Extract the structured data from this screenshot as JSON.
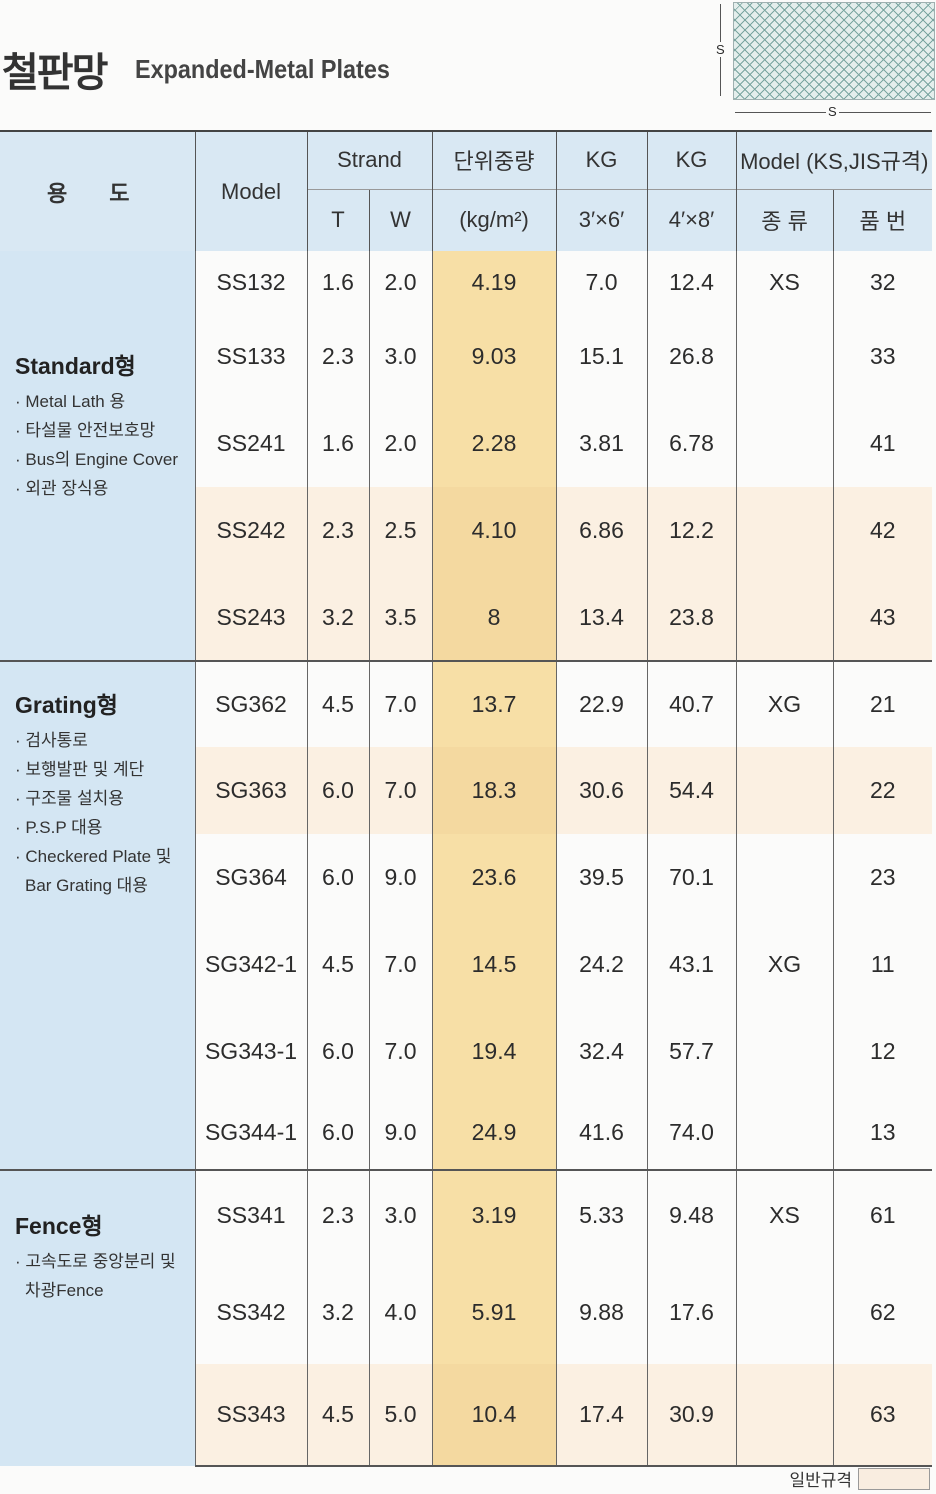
{
  "title_ko": "철판망",
  "title_en": "Expanded-Metal Plates",
  "diagram": {
    "s_vertical": "S",
    "s_horizontal": "S"
  },
  "header": {
    "usage": "용 도",
    "model": "Model",
    "strand": "Strand",
    "t": "T",
    "w": "W",
    "weight": "단위중량",
    "weight_unit": "(kg/m²)",
    "kg1": "KG",
    "size1": "3′×6′",
    "kg2": "KG",
    "size2": "4′×8′",
    "ks_model": "Model (KS,JIS규격)",
    "kind": "종 류",
    "part_no": "품 번"
  },
  "groups": [
    {
      "title": "Standard형",
      "items": [
        "· Metal Lath 용",
        "· 타설물 안전보호망",
        "· Bus의 Engine Cover",
        "· 외관 장식용"
      ]
    },
    {
      "title": "Grating형",
      "items": [
        "· 검사통로",
        "· 보행발판 및 계단",
        "· 구조물 설치용",
        "· P.S.P 대용",
        "· Checkered Plate 및 Bar Grating 대용"
      ]
    },
    {
      "title": "Fence형",
      "items": [
        "· 고속도로 중앙분리 및 차광Fence"
      ]
    }
  ],
  "rows": [
    {
      "model": "SS132",
      "t": "1.6",
      "w": "2.0",
      "weight": "4.19",
      "kg36": "7.0",
      "kg48": "12.4",
      "kind": "XS",
      "no": "32"
    },
    {
      "model": "SS133",
      "t": "2.3",
      "w": "3.0",
      "weight": "9.03",
      "kg36": "15.1",
      "kg48": "26.8",
      "kind": "",
      "no": "33"
    },
    {
      "model": "SS241",
      "t": "1.6",
      "w": "2.0",
      "weight": "2.28",
      "kg36": "3.81",
      "kg48": "6.78",
      "kind": "",
      "no": "41"
    },
    {
      "model": "SS242",
      "t": "2.3",
      "w": "2.5",
      "weight": "4.10",
      "kg36": "6.86",
      "kg48": "12.2",
      "kind": "",
      "no": "42"
    },
    {
      "model": "SS243",
      "t": "3.2",
      "w": "3.5",
      "weight": "8",
      "kg36": "13.4",
      "kg48": "23.8",
      "kind": "",
      "no": "43"
    },
    {
      "model": "SG362",
      "t": "4.5",
      "w": "7.0",
      "weight": "13.7",
      "kg36": "22.9",
      "kg48": "40.7",
      "kind": "XG",
      "no": "21"
    },
    {
      "model": "SG363",
      "t": "6.0",
      "w": "7.0",
      "weight": "18.3",
      "kg36": "30.6",
      "kg48": "54.4",
      "kind": "",
      "no": "22"
    },
    {
      "model": "SG364",
      "t": "6.0",
      "w": "9.0",
      "weight": "23.6",
      "kg36": "39.5",
      "kg48": "70.1",
      "kind": "",
      "no": "23"
    },
    {
      "model": "SG342-1",
      "t": "4.5",
      "w": "7.0",
      "weight": "14.5",
      "kg36": "24.2",
      "kg48": "43.1",
      "kind": "XG",
      "no": "11"
    },
    {
      "model": "SG343-1",
      "t": "6.0",
      "w": "7.0",
      "weight": "19.4",
      "kg36": "32.4",
      "kg48": "57.7",
      "kind": "",
      "no": "12"
    },
    {
      "model": "SG344-1",
      "t": "6.0",
      "w": "9.0",
      "weight": "24.9",
      "kg36": "41.6",
      "kg48": "74.0",
      "kind": "",
      "no": "13"
    },
    {
      "model": "SS341",
      "t": "2.3",
      "w": "3.0",
      "weight": "3.19",
      "kg36": "5.33",
      "kg48": "9.48",
      "kind": "XS",
      "no": "61"
    },
    {
      "model": "SS342",
      "t": "3.2",
      "w": "4.0",
      "weight": "5.91",
      "kg36": "9.88",
      "kg48": "17.6",
      "kind": "",
      "no": "62"
    },
    {
      "model": "SS343",
      "t": "4.5",
      "w": "5.0",
      "weight": "10.4",
      "kg36": "17.4",
      "kg48": "30.9",
      "kind": "",
      "no": "63"
    }
  ],
  "legend": "일반규격"
}
